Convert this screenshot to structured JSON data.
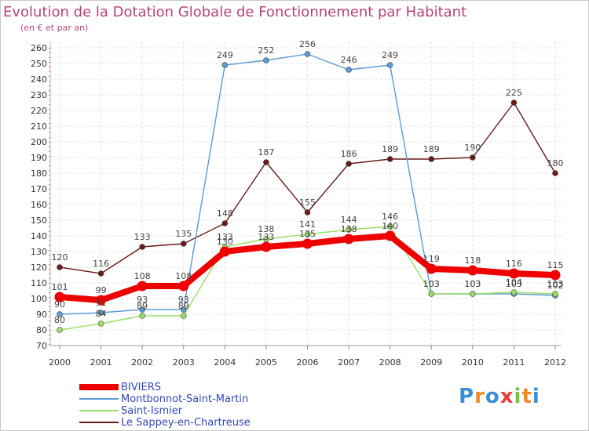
{
  "chart_data": {
    "type": "line",
    "title": "Evolution de la Dotation Globale de Fonctionnement par Habitant",
    "subtitle": "(en € et par an)",
    "xlabel": "",
    "ylabel": "",
    "x": [
      "2000",
      "2001",
      "2002",
      "2003",
      "2004",
      "2005",
      "2006",
      "2007",
      "2008",
      "2009",
      "2010",
      "2011",
      "2012"
    ],
    "ylim": [
      70,
      260
    ],
    "yticks": [
      "70",
      "80",
      "90",
      "100",
      "110",
      "120",
      "130",
      "140",
      "150",
      "160",
      "170",
      "180",
      "190",
      "200",
      "210",
      "220",
      "230",
      "240",
      "250",
      "260"
    ],
    "series": [
      {
        "name": "Le Sappey-en-Chartreuse",
        "color": "#6b1a1a",
        "values": [
          120,
          116,
          133,
          135,
          148,
          187,
          155,
          186,
          189,
          189,
          190,
          225,
          180
        ]
      },
      {
        "name": "Montbonnot-Saint-Martin",
        "color": "#5b9bd5",
        "values": [
          90,
          91,
          93,
          93,
          249,
          252,
          256,
          246,
          249,
          103,
          103,
          103,
          102
        ]
      },
      {
        "name": "Saint-Ismier",
        "color": "#99dd66",
        "values": [
          80,
          84,
          89,
          89,
          133,
          138,
          141,
          144,
          146,
          103,
          103,
          104,
          103
        ]
      },
      {
        "name": "BIVIERS",
        "color": "#ee0000",
        "values": [
          101,
          99,
          108,
          108,
          130,
          133,
          135,
          138,
          140,
          119,
          118,
          116,
          115
        ]
      }
    ],
    "legend": [
      "BIVIERS",
      "Montbonnot-Saint-Martin",
      "Saint-Ismier",
      "Le Sappey-en-Chartreuse"
    ],
    "legend_position": "bottom-left"
  },
  "logo": {
    "text": "Proxiti"
  }
}
